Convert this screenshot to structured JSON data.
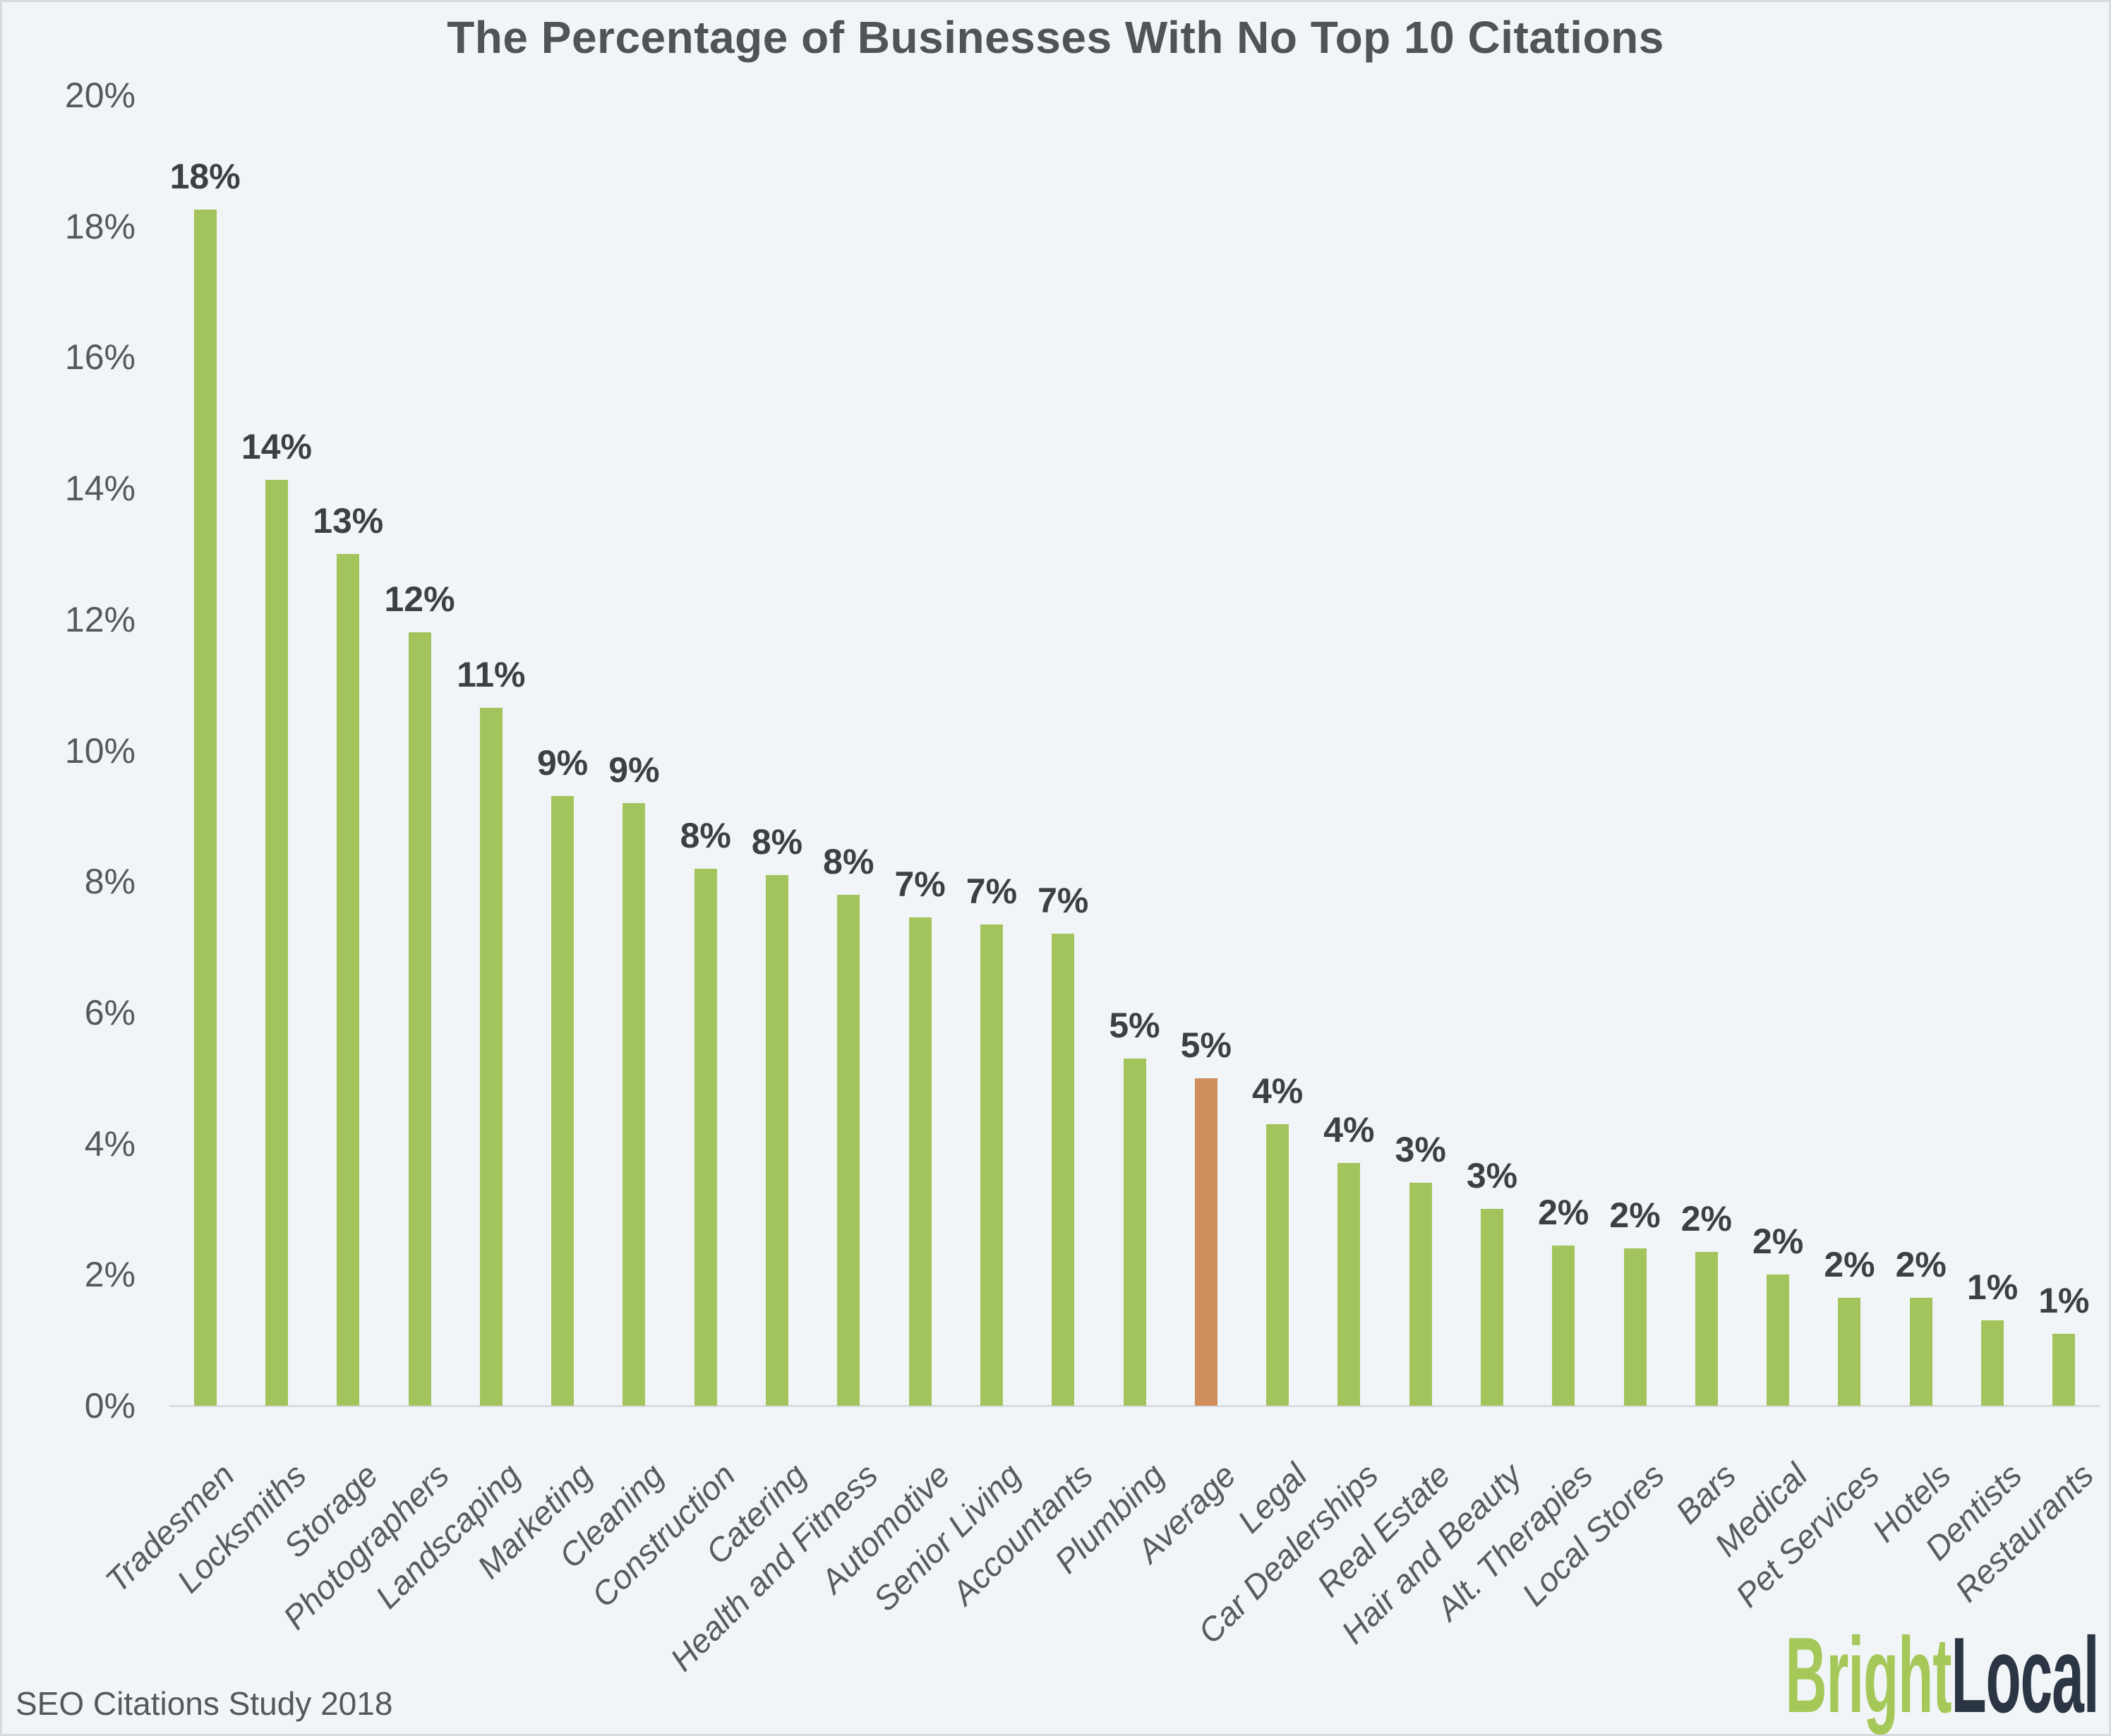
{
  "title": "The Percentage of Businesses With No Top 10 Citations",
  "footer": {
    "source": "SEO Citations Study 2018"
  },
  "logo": {
    "part1": "Bright",
    "part2": "Local"
  },
  "colors": {
    "background": "#f1f5f8",
    "bar": "#a3c45c",
    "highlight_bar": "#cf8e5b",
    "axis_line": "#d9dce0",
    "tick_text": "#56585b",
    "value_text": "#3c3f43",
    "category_text": "#595b5e",
    "title_text": "#515456",
    "footer_text": "#55575a",
    "logo_green": "#a5c858",
    "logo_navy": "#2b3544"
  },
  "chart_data": {
    "type": "bar",
    "title": "The Percentage of Businesses With No Top 10 Citations",
    "categories": [
      "Tradesmen",
      "Locksmiths",
      "Storage",
      "Photographers",
      "Landscaping",
      "Marketing",
      "Cleaning",
      "Construction",
      "Catering",
      "Health and Fitness",
      "Automotive",
      "Senior Living",
      "Accountants",
      "Plumbing",
      "Average",
      "Legal",
      "Car Dealerships",
      "Real Estate",
      "Hair and Beauty",
      "Alt. Therapies",
      "Local Stores",
      "Bars",
      "Medical",
      "Pet Services",
      "Hotels",
      "Dentists",
      "Restaurants"
    ],
    "values": [
      18,
      14,
      13,
      12,
      11,
      9,
      9,
      8,
      8,
      8,
      7,
      7,
      7,
      5,
      5,
      4,
      4,
      3,
      3,
      2,
      2,
      2,
      2,
      2,
      2,
      1,
      1
    ],
    "value_labels": [
      "18%",
      "14%",
      "13%",
      "12%",
      "11%",
      "9%",
      "9%",
      "8%",
      "8%",
      "8%",
      "7%",
      "7%",
      "7%",
      "5%",
      "5%",
      "4%",
      "4%",
      "3%",
      "3%",
      "2%",
      "2%",
      "2%",
      "2%",
      "2%",
      "2%",
      "1%",
      "1%"
    ],
    "precise_values": [
      18.25,
      14.13,
      13.0,
      11.8,
      10.65,
      9.3,
      9.2,
      8.2,
      8.1,
      7.8,
      7.45,
      7.35,
      7.2,
      5.3,
      5.0,
      4.3,
      3.7,
      3.4,
      3.0,
      2.45,
      2.4,
      2.35,
      2.0,
      1.65,
      1.65,
      1.3,
      1.1
    ],
    "highlight_category": "Average",
    "highlight_index": 14,
    "xlabel": "",
    "ylabel": "",
    "ylim": [
      0,
      20
    ],
    "yticks": [
      "0%",
      "2%",
      "4%",
      "6%",
      "8%",
      "10%",
      "12%",
      "14%",
      "16%",
      "18%",
      "20%"
    ],
    "x_tick_rotation_deg": 45,
    "grid": false,
    "legend": false,
    "source": "SEO Citations Study 2018"
  }
}
